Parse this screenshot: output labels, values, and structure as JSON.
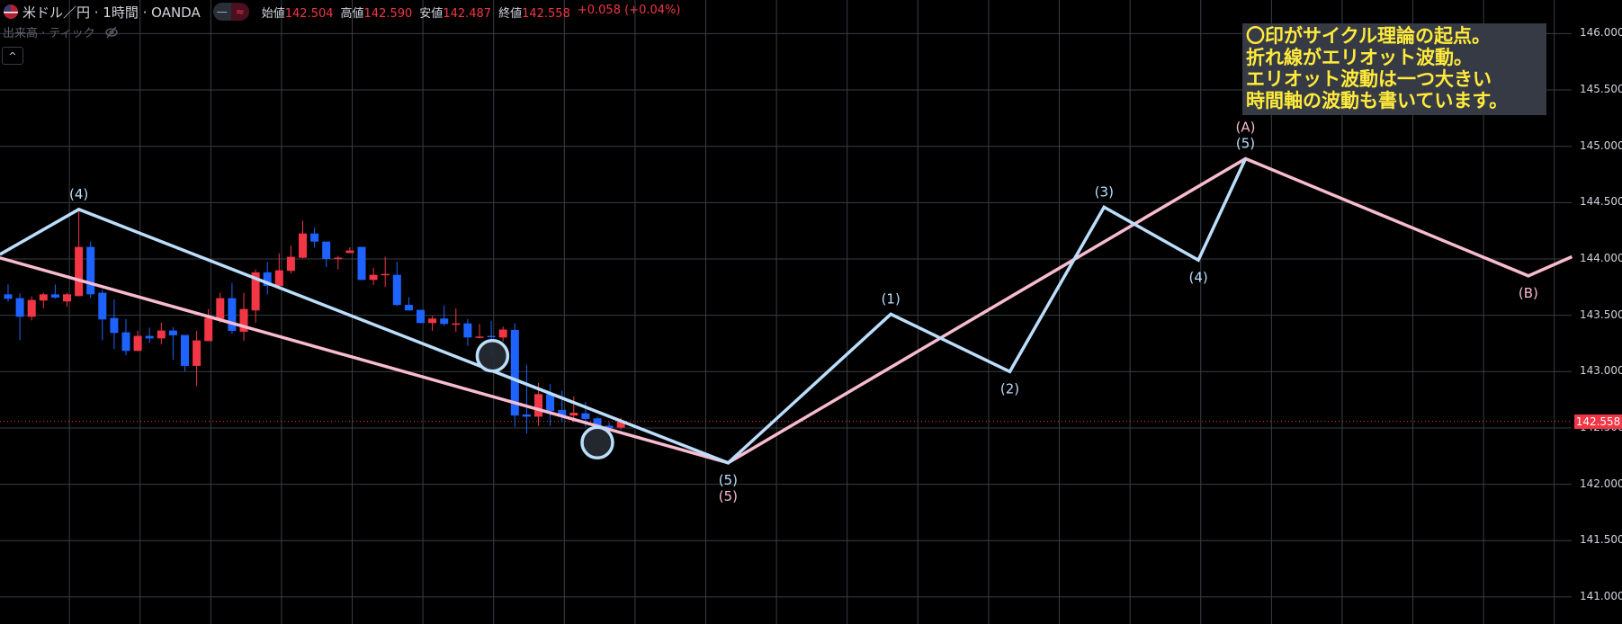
{
  "header": {
    "symbol": "米ドル／円 · 1時間 · OANDA",
    "flag_icon": "us-flag-icon",
    "toggle_left": "—",
    "toggle_right": "≈",
    "ohlc": [
      {
        "label": "始値",
        "value": "142.504"
      },
      {
        "label": "高値",
        "value": "142.590"
      },
      {
        "label": "安値",
        "value": "142.487"
      },
      {
        "label": "終値",
        "value": "142.558"
      }
    ],
    "change": "+0.058 (+0.04%)",
    "volume_label": "出来高 · ティック",
    "volume_icon": "eye-slash-icon",
    "collapse_label": "^"
  },
  "note": {
    "lines": [
      "〇印がサイクル理論の起点。",
      "折れ線がエリオット波動。",
      "エリオット波動は一つ大きい",
      "時間軸の波動も書いています。"
    ],
    "text_color": "#ffeb3b",
    "bg_color": "#363a45"
  },
  "price_axis": {
    "ticks": [
      "146.000",
      "145.500",
      "145.000",
      "144.500",
      "144.000",
      "143.500",
      "143.000",
      "142.500",
      "142.000",
      "141.500",
      "141.000"
    ],
    "current_price": "142.558",
    "current_price_color": "#f23645"
  },
  "chart_data": {
    "type": "candlestick",
    "title": "米ドル／円 · 1時間 · OANDA",
    "ylim": [
      140.8,
      146.3
    ],
    "grid": true,
    "up_color": "#f23645",
    "down_color": "#1e63ff",
    "ohlc": [
      [
        143.686,
        143.774,
        143.62,
        143.646
      ],
      [
        143.652,
        143.694,
        143.279,
        143.487
      ],
      [
        143.487,
        143.668,
        143.455,
        143.636
      ],
      [
        143.631,
        143.7,
        143.561,
        143.686
      ],
      [
        143.686,
        143.774,
        143.646,
        143.657
      ],
      [
        143.623,
        143.7,
        143.575,
        143.686
      ],
      [
        143.67,
        144.439,
        143.67,
        144.107
      ],
      [
        144.107,
        144.154,
        143.654,
        143.686
      ],
      [
        143.7,
        143.726,
        143.279,
        143.463
      ],
      [
        143.476,
        143.641,
        143.2,
        143.343
      ],
      [
        143.349,
        143.468,
        143.144,
        143.184
      ],
      [
        143.184,
        143.362,
        143.181,
        143.317
      ],
      [
        143.317,
        143.389,
        143.256,
        143.295
      ],
      [
        143.295,
        143.434,
        143.242,
        143.365
      ],
      [
        143.365,
        143.396,
        143.104,
        143.322
      ],
      [
        143.325,
        143.325,
        143.003,
        143.051
      ],
      [
        143.051,
        143.362,
        142.87,
        143.277
      ],
      [
        143.271,
        143.556,
        143.271,
        143.476
      ],
      [
        143.468,
        143.7,
        143.434,
        143.652
      ],
      [
        143.652,
        143.787,
        143.335,
        143.362
      ],
      [
        143.354,
        143.7,
        143.274,
        143.556
      ],
      [
        143.543,
        143.907,
        143.434,
        143.881
      ],
      [
        143.881,
        143.974,
        143.686,
        143.761
      ],
      [
        143.761,
        144.05,
        143.761,
        143.899
      ],
      [
        143.894,
        144.12,
        143.87,
        144.019
      ],
      [
        144.011,
        144.338,
        144.006,
        144.226
      ],
      [
        144.226,
        144.279,
        144.1,
        144.154
      ],
      [
        144.154,
        144.154,
        143.928,
        144.0
      ],
      [
        144.008,
        144.027,
        143.907,
        144.011
      ],
      [
        144.053,
        144.104,
        144.053,
        144.075
      ],
      [
        144.107,
        144.107,
        143.814,
        143.814
      ],
      [
        143.814,
        143.92,
        143.769,
        143.859
      ],
      [
        143.862,
        144.019,
        143.753,
        143.867
      ],
      [
        143.859,
        143.974,
        143.583,
        143.591
      ],
      [
        143.593,
        143.66,
        143.543,
        143.543
      ],
      [
        143.548,
        143.548,
        143.431,
        143.431
      ],
      [
        143.431,
        143.495,
        143.362,
        143.471
      ],
      [
        143.471,
        143.588,
        143.407,
        143.423
      ],
      [
        143.423,
        143.561,
        143.354,
        143.428
      ],
      [
        143.428,
        143.468,
        143.229,
        143.303
      ],
      [
        143.306,
        143.422,
        143.295,
        143.311
      ],
      [
        143.317,
        143.45,
        143.136,
        143.311
      ],
      [
        143.303,
        143.4,
        143.269,
        143.373
      ],
      [
        143.37,
        143.43,
        142.51,
        142.61
      ],
      [
        142.62,
        143.06,
        142.45,
        142.6
      ],
      [
        142.6,
        142.9,
        142.52,
        142.8
      ],
      [
        142.8,
        142.89,
        142.52,
        142.65
      ],
      [
        142.66,
        142.83,
        142.55,
        142.61
      ],
      [
        142.61,
        142.78,
        142.55,
        142.635
      ],
      [
        142.63,
        142.73,
        142.51,
        142.58
      ],
      [
        142.585,
        142.6,
        142.49,
        142.52
      ],
      [
        142.52,
        142.55,
        142.49,
        142.5
      ],
      [
        142.504,
        142.59,
        142.487,
        142.558
      ]
    ],
    "elliott_lines": [
      {
        "color": "#bbdefb",
        "points": [
          [
            -0.7,
            144.04
          ],
          [
            6,
            144.44
          ],
          [
            61.1,
            142.19
          ],
          [
            74.9,
            143.51
          ],
          [
            85,
            143.0
          ],
          [
            93,
            144.46
          ],
          [
            101,
            143.99
          ],
          [
            105,
            144.89
          ]
        ],
        "labels": [
          {
            "i": 1,
            "text": "(4)",
            "pos": "above"
          },
          {
            "i": 2,
            "text": "(5)",
            "pos": "below"
          },
          {
            "i": 3,
            "text": "(1)",
            "pos": "above"
          },
          {
            "i": 4,
            "text": "(2)",
            "pos": "below"
          },
          {
            "i": 5,
            "text": "(3)",
            "pos": "above"
          },
          {
            "i": 6,
            "text": "(4)",
            "pos": "below"
          },
          {
            "i": 7,
            "text": "(5)",
            "pos": "above"
          }
        ]
      },
      {
        "color": "#f8bbd0",
        "points": [
          [
            -0.7,
            144.01
          ],
          [
            61.1,
            142.19
          ],
          [
            105,
            144.89
          ],
          [
            129,
            143.85
          ],
          [
            132.7,
            144.02
          ]
        ],
        "labels": [
          {
            "i": 1,
            "text": "(5)",
            "pos": "below"
          },
          {
            "i": 2,
            "text": "(A)",
            "pos": "above"
          },
          {
            "i": 3,
            "text": "(B)",
            "pos": "below"
          }
        ]
      }
    ],
    "cycle_circles": [
      [
        41.1,
        143.14
      ],
      [
        50,
        142.37
      ]
    ]
  }
}
